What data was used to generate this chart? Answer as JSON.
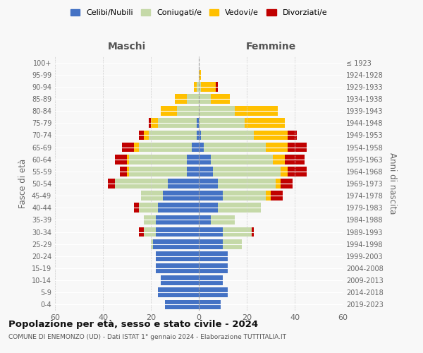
{
  "age_groups": [
    "0-4",
    "5-9",
    "10-14",
    "15-19",
    "20-24",
    "25-29",
    "30-34",
    "35-39",
    "40-44",
    "45-49",
    "50-54",
    "55-59",
    "60-64",
    "65-69",
    "70-74",
    "75-79",
    "80-84",
    "85-89",
    "90-94",
    "95-99",
    "100+"
  ],
  "birth_years": [
    "2019-2023",
    "2014-2018",
    "2009-2013",
    "2004-2008",
    "1999-2003",
    "1994-1998",
    "1989-1993",
    "1984-1988",
    "1979-1983",
    "1974-1978",
    "1969-1973",
    "1964-1968",
    "1959-1963",
    "1954-1958",
    "1949-1953",
    "1944-1948",
    "1939-1943",
    "1934-1938",
    "1929-1933",
    "1924-1928",
    "≤ 1923"
  ],
  "male": {
    "celibi": [
      14,
      17,
      16,
      18,
      18,
      19,
      18,
      18,
      17,
      15,
      13,
      5,
      5,
      3,
      1,
      1,
      0,
      0,
      0,
      0,
      0
    ],
    "coniugati": [
      0,
      0,
      0,
      0,
      0,
      1,
      5,
      5,
      8,
      9,
      22,
      24,
      24,
      22,
      20,
      16,
      9,
      5,
      1,
      0,
      0
    ],
    "vedovi": [
      0,
      0,
      0,
      0,
      0,
      0,
      0,
      0,
      0,
      0,
      0,
      1,
      1,
      2,
      2,
      3,
      7,
      5,
      1,
      0,
      0
    ],
    "divorziati": [
      0,
      0,
      0,
      0,
      0,
      0,
      2,
      0,
      2,
      0,
      3,
      3,
      5,
      5,
      2,
      1,
      0,
      0,
      0,
      0,
      0
    ]
  },
  "female": {
    "nubili": [
      9,
      12,
      10,
      12,
      12,
      10,
      10,
      5,
      8,
      10,
      8,
      6,
      5,
      2,
      1,
      0,
      0,
      0,
      0,
      0,
      0
    ],
    "coniugate": [
      0,
      0,
      0,
      0,
      0,
      8,
      12,
      10,
      18,
      18,
      24,
      28,
      26,
      26,
      22,
      19,
      15,
      5,
      1,
      0,
      0
    ],
    "vedove": [
      0,
      0,
      0,
      0,
      0,
      0,
      0,
      0,
      0,
      2,
      2,
      3,
      5,
      9,
      14,
      17,
      18,
      8,
      6,
      1,
      0
    ],
    "divorziate": [
      0,
      0,
      0,
      0,
      0,
      0,
      1,
      0,
      0,
      5,
      5,
      8,
      8,
      8,
      4,
      0,
      0,
      0,
      1,
      0,
      0
    ]
  },
  "colors": {
    "celibi": "#4472c4",
    "coniugati": "#c5d9a8",
    "vedovi": "#ffc000",
    "divorziati": "#c00000"
  },
  "title": "Popolazione per età, sesso e stato civile - 2024",
  "subtitle": "COMUNE DI ENEMONZO (UD) - Dati ISTAT 1° gennaio 2024 - Elaborazione TUTTITALIA.IT",
  "xlabel_left": "Maschi",
  "xlabel_right": "Femmine",
  "ylabel_left": "Fasce di età",
  "ylabel_right": "Anni di nascita",
  "xlim": 60,
  "legend_labels": [
    "Celibi/Nubili",
    "Coniugati/e",
    "Vedovi/e",
    "Divorziati/e"
  ],
  "bg_color": "#f8f8f8",
  "grid_color": "#cccccc"
}
